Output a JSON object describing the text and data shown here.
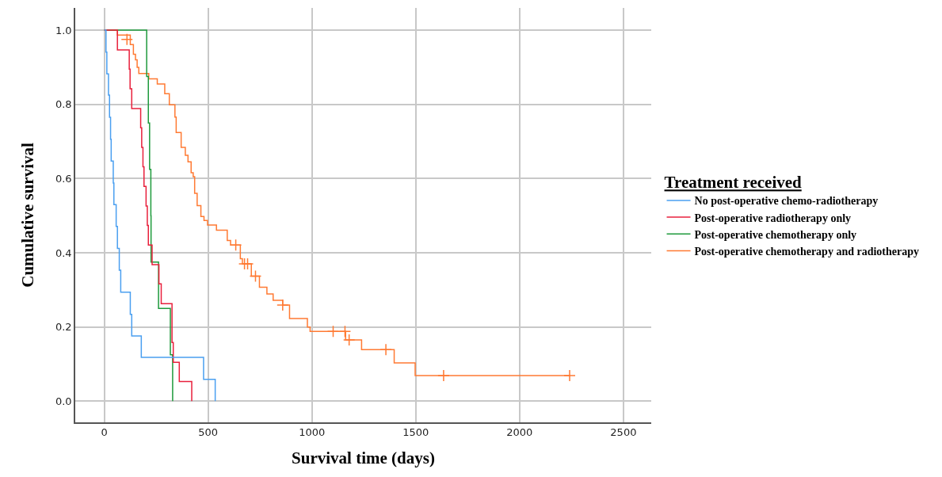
{
  "chart_data": {
    "type": "step",
    "xlabel": "Survival time (days)",
    "ylabel": "Cumulative survival",
    "legend_title": "Treatment received",
    "xlim": [
      -140,
      2634
    ],
    "xticks": [
      0,
      500,
      1000,
      1500,
      2000,
      2500
    ],
    "ylim": [
      -0.057,
      1.06
    ],
    "yticks": [
      {
        "value": 0,
        "label": "0.0"
      },
      {
        "value": 0.2,
        "label": "0.2"
      },
      {
        "value": 0.4,
        "label": "0.4"
      },
      {
        "value": 0.6,
        "label": "0.6"
      },
      {
        "value": 0.8,
        "label": "0.8"
      },
      {
        "value": 1,
        "label": "1.0"
      }
    ],
    "grid": true,
    "legend": "right",
    "line_style": "solid",
    "marker": "none",
    "series": [
      {
        "name": "No post-operative chemo-radiotherapy",
        "color": "#4a9ff0",
        "x": [
          0,
          8,
          12,
          20,
          25,
          30,
          33,
          43,
          46,
          57,
          63,
          72,
          79,
          125,
          132,
          178,
          478,
          534
        ],
        "values": [
          1.0,
          0.941,
          0.882,
          0.825,
          0.765,
          0.706,
          0.647,
          0.588,
          0.53,
          0.471,
          0.412,
          0.353,
          0.294,
          0.234,
          0.176,
          0.118,
          0.059,
          0
        ]
      },
      {
        "name": "Post-operative radiotherapy only",
        "color": "#e8203c",
        "x": [
          0,
          63,
          120,
          124,
          132,
          175,
          180,
          186,
          191,
          201,
          207,
          212,
          230,
          263,
          274,
          326,
          332,
          361,
          421
        ],
        "values": [
          1.0,
          0.947,
          0.895,
          0.842,
          0.789,
          0.737,
          0.684,
          0.632,
          0.579,
          0.526,
          0.474,
          0.421,
          0.368,
          0.316,
          0.263,
          0.158,
          0.105,
          0.053,
          0
        ]
      },
      {
        "name": "Post-operative chemotherapy only",
        "color": "#1e9a3c",
        "x": [
          0,
          204,
          212,
          218,
          224,
          225,
          261,
          318,
          329
        ],
        "values": [
          1.0,
          0.875,
          0.75,
          0.625,
          0.5,
          0.375,
          0.25,
          0.125,
          0
        ]
      },
      {
        "name": "Post-operative chemotherapy and radiotherapy",
        "color": "#ff7a33",
        "x": [
          0,
          63,
          125,
          140,
          150,
          158,
          166,
          214,
          255,
          291,
          313,
          340,
          346,
          370,
          390,
          403,
          418,
          428,
          435,
          447,
          465,
          480,
          497,
          540,
          592,
          608,
          655,
          665,
          708,
          747,
          783,
          813,
          859,
          892,
          978,
          991,
          1162,
          1239,
          1396,
          1497,
          2241
        ],
        "values": [
          1.0,
          0.987,
          0.961,
          0.935,
          0.92,
          0.9,
          0.883,
          0.869,
          0.855,
          0.829,
          0.799,
          0.766,
          0.724,
          0.684,
          0.663,
          0.645,
          0.616,
          0.605,
          0.56,
          0.527,
          0.498,
          0.487,
          0.475,
          0.461,
          0.433,
          0.421,
          0.384,
          0.37,
          0.337,
          0.307,
          0.289,
          0.272,
          0.259,
          0.223,
          0.2,
          0.188,
          0.165,
          0.139,
          0.103,
          0.069,
          0.069
        ]
      },
      {
        "type": "scatter",
        "marker": "cross",
        "color": "#ff7a33",
        "x": [
          109,
          633,
          675,
          690,
          728,
          859,
          1102,
          1159,
          1179,
          1356,
          1634,
          2241
        ],
        "values": [
          0.975,
          0.421,
          0.37,
          0.37,
          0.337,
          0.259,
          0.188,
          0.188,
          0.165,
          0.139,
          0.069,
          0.069
        ]
      }
    ]
  }
}
